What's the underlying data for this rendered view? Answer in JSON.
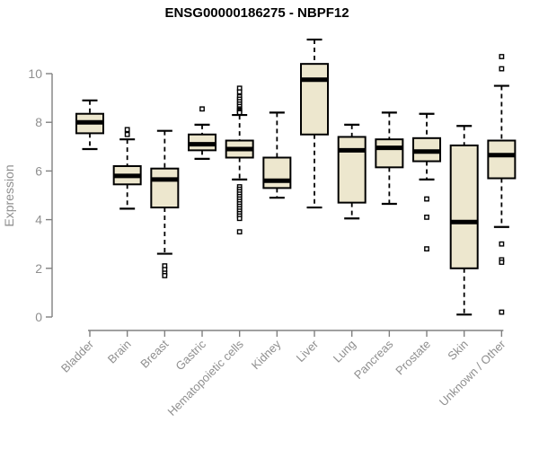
{
  "page": {
    "background": "#ffffff"
  },
  "chart_data": {
    "type": "box",
    "title": "ENSG00000186275 - NBPF12",
    "ylabel": "Expression",
    "xlabel": "",
    "ylim": [
      0,
      10
    ],
    "yticks": [
      0,
      2,
      4,
      6,
      8,
      10
    ],
    "grid": false,
    "legend": "none",
    "box_fill": "#EDE7CE",
    "box_stroke": "#000000",
    "median_color": "#000000",
    "whisker_color": "#000000",
    "axis_color": "#808080",
    "label_color": "#8f8f8f",
    "title_color": "#000000",
    "categories": [
      "Bladder",
      "Brain",
      "Breast",
      "Gastric",
      "Hematopoietic cells",
      "Kidney",
      "Liver",
      "Lung",
      "Pancreas",
      "Prostate",
      "Skin",
      "Unknown / Other"
    ],
    "series": [
      {
        "name": "Bladder",
        "whisker_low": 6.9,
        "q1": 7.55,
        "median": 8.0,
        "q3": 8.35,
        "whisker_high": 8.9,
        "outliers": []
      },
      {
        "name": "Brain",
        "whisker_low": 4.45,
        "q1": 5.45,
        "median": 5.8,
        "q3": 6.2,
        "whisker_high": 7.3,
        "outliers": [
          7.7,
          7.5
        ]
      },
      {
        "name": "Breast",
        "whisker_low": 2.6,
        "q1": 4.5,
        "median": 5.65,
        "q3": 6.1,
        "whisker_high": 7.65,
        "outliers": [
          2.1,
          1.95,
          1.8,
          1.7
        ]
      },
      {
        "name": "Gastric",
        "whisker_low": 6.5,
        "q1": 6.85,
        "median": 7.1,
        "q3": 7.5,
        "whisker_high": 7.9,
        "outliers": [
          8.55
        ]
      },
      {
        "name": "Hematopoietic cells",
        "whisker_low": 5.65,
        "q1": 6.55,
        "median": 6.9,
        "q3": 7.25,
        "whisker_high": 8.3,
        "outliers": [
          9.4,
          9.25,
          9.05,
          8.95,
          8.85,
          8.75,
          8.65,
          8.55,
          8.5,
          8.45,
          8.4,
          5.35,
          5.25,
          5.15,
          5.05,
          4.95,
          4.85,
          4.75,
          4.65,
          4.55,
          4.45,
          4.35,
          4.25,
          4.15,
          4.05,
          3.5
        ]
      },
      {
        "name": "Kidney",
        "whisker_low": 4.9,
        "q1": 5.3,
        "median": 5.6,
        "q3": 6.55,
        "whisker_high": 8.4,
        "outliers": []
      },
      {
        "name": "Liver",
        "whisker_low": 4.5,
        "q1": 7.5,
        "median": 9.75,
        "q3": 10.4,
        "whisker_high": 11.4,
        "outliers": []
      },
      {
        "name": "Lung",
        "whisker_low": 4.05,
        "q1": 4.7,
        "median": 6.85,
        "q3": 7.4,
        "whisker_high": 7.9,
        "outliers": []
      },
      {
        "name": "Pancreas",
        "whisker_low": 4.65,
        "q1": 6.15,
        "median": 6.95,
        "q3": 7.3,
        "whisker_high": 8.4,
        "outliers": []
      },
      {
        "name": "Prostate",
        "whisker_low": 5.65,
        "q1": 6.4,
        "median": 6.8,
        "q3": 7.35,
        "whisker_high": 8.35,
        "outliers": [
          4.85,
          4.1,
          2.8
        ]
      },
      {
        "name": "Skin",
        "whisker_low": 0.1,
        "q1": 2.0,
        "median": 3.9,
        "q3": 7.05,
        "whisker_high": 7.85,
        "outliers": []
      },
      {
        "name": "Unknown / Other",
        "whisker_low": 3.7,
        "q1": 5.7,
        "median": 6.65,
        "q3": 7.25,
        "whisker_high": 9.5,
        "outliers": [
          10.7,
          10.2,
          3.0,
          2.35,
          2.25,
          0.2
        ]
      }
    ]
  }
}
